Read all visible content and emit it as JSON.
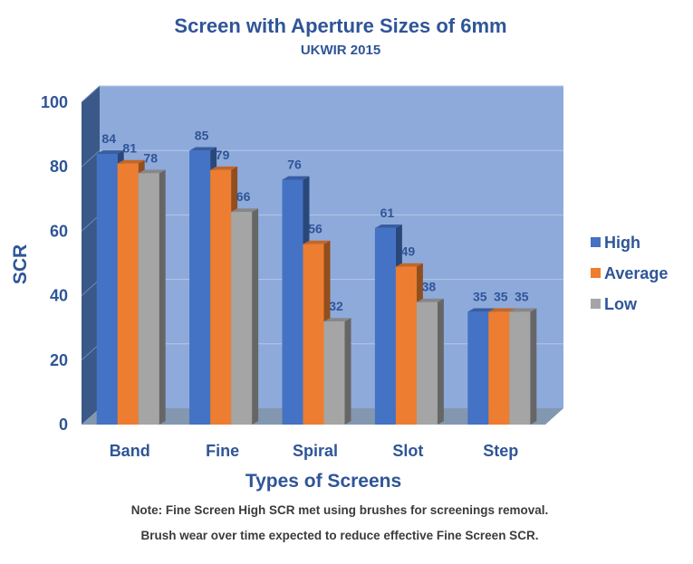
{
  "chart_data": {
    "type": "bar",
    "title": "Screen with Aperture Sizes of 6mm",
    "subtitle": "UKWIR 2015",
    "xlabel": "Types of Screens",
    "ylabel": "SCR",
    "ylim": [
      0,
      100
    ],
    "yticks": [
      0,
      20,
      40,
      60,
      80,
      100
    ],
    "grid": true,
    "legend_position": "right",
    "categories": [
      "Band",
      "Fine",
      "Spiral",
      "Slot",
      "Step"
    ],
    "series": [
      {
        "name": "High",
        "color": "#4472c4",
        "values": [
          84,
          85,
          76,
          61,
          35
        ]
      },
      {
        "name": "Average",
        "color": "#ed7d31",
        "values": [
          81,
          79,
          56,
          49,
          35
        ]
      },
      {
        "name": "Low",
        "color": "#a5a5a5",
        "values": [
          78,
          66,
          32,
          38,
          35
        ]
      }
    ],
    "notes": [
      "Note: Fine Screen High SCR met using brushes for screenings removal.",
      "Brush wear over time expected to reduce effective Fine Screen SCR."
    ]
  }
}
